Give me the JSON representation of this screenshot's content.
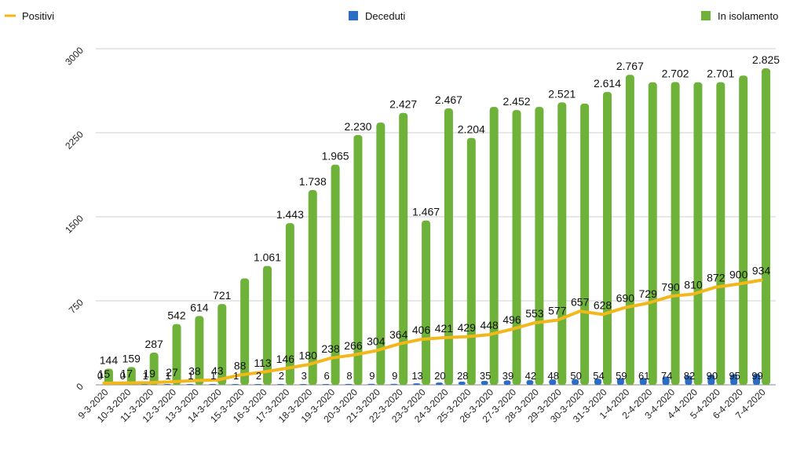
{
  "chart_data": {
    "type": "bar",
    "categories": [
      "9-3-2020",
      "10-3-2020",
      "11-3-2020",
      "12-3-2020",
      "13-3-2020",
      "14-3-2020",
      "15-3-2020",
      "16-3-2020",
      "17-3-2020",
      "18-3-2020",
      "19-3-2020",
      "20-3-2020",
      "21-3-2020",
      "22-3-2020",
      "23-3-2020",
      "24-3-2020",
      "25-3-2020",
      "26-3-2020",
      "27-3-2020",
      "28-3-2020",
      "29-3-2020",
      "30-3-2020",
      "31-3-2020",
      "1-4-2020",
      "2-4-2020",
      "3-4-2020",
      "4-4-2020",
      "5-4-2020",
      "6-4-2020",
      "7-4-2020"
    ],
    "series": [
      {
        "name": "Positivi",
        "kind": "line",
        "color": "#f2b71a",
        "values": [
          15,
          17,
          19,
          27,
          38,
          43,
          88,
          113,
          146,
          180,
          238,
          266,
          304,
          364,
          406,
          421,
          429,
          448,
          496,
          553,
          577,
          657,
          628,
          690,
          729,
          790,
          810,
          872,
          900,
          934
        ]
      },
      {
        "name": "Deceduti",
        "kind": "bar",
        "color": "#2b6cc4",
        "values": [
          0,
          0,
          1,
          1,
          1,
          1,
          1,
          2,
          2,
          3,
          6,
          8,
          9,
          9,
          13,
          20,
          28,
          35,
          39,
          42,
          48,
          50,
          54,
          59,
          61,
          74,
          82,
          90,
          95,
          99
        ]
      },
      {
        "name": "In isolamento",
        "kind": "bar",
        "color": "#6fb23a",
        "values": [
          144,
          159,
          287,
          542,
          614,
          721,
          950,
          1061,
          1443,
          1738,
          1965,
          2230,
          2340,
          2427,
          1467,
          2467,
          2204,
          2480,
          2452,
          2480,
          2521,
          2510,
          2614,
          2767,
          2700,
          2702,
          2700,
          2701,
          2760,
          2825
        ]
      }
    ],
    "positivi_labels": [
      "15",
      "17",
      "19",
      "27",
      "38",
      "43",
      "88",
      "113",
      "146",
      "180",
      "238",
      "266",
      "304",
      "364",
      "406",
      "421",
      "429",
      "448",
      "496",
      "553",
      "577",
      "657",
      "628",
      "690",
      "729",
      "790",
      "810",
      "872",
      "900",
      "934"
    ],
    "deceduti_labels": [
      "0",
      "0",
      "1",
      "1",
      "1",
      "1",
      "1",
      "2",
      "2",
      "3",
      "6",
      "8",
      "9",
      "9",
      "13",
      "20",
      "28",
      "35",
      "39",
      "42",
      "48",
      "50",
      "54",
      "59",
      "61",
      "74",
      "82",
      "90",
      "95",
      "99"
    ],
    "isolamento_labels": [
      "144",
      "159",
      "287",
      "542",
      "614",
      "721",
      "",
      "1.061",
      "1.443",
      "1.738",
      "1.965",
      "2.230",
      "",
      "2.427",
      "1.467",
      "2.467",
      "2.204",
      "",
      "2.452",
      "",
      "2.521",
      "",
      "2.614",
      "2.767",
      "",
      "2.702",
      "",
      "2.701",
      "",
      "2.825"
    ],
    "y_ticks": [
      "0",
      "750",
      "1500",
      "2250",
      "3000"
    ],
    "y_tick_values": [
      0,
      750,
      1500,
      2250,
      3000
    ],
    "ylim": [
      0,
      3000
    ],
    "grid": true,
    "legend": [
      {
        "label": "Positivi",
        "position": "top-left"
      },
      {
        "label": "Deceduti",
        "position": "top-center"
      },
      {
        "label": "In isolamento",
        "position": "top-right"
      }
    ],
    "title": "",
    "xlabel": "",
    "ylabel": ""
  }
}
